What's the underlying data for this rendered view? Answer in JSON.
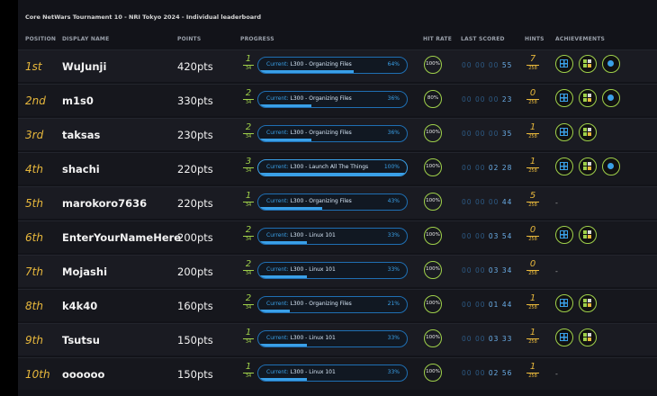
{
  "title": "Core NetWars Tournament 10 - NRI Tokyo 2024 - Individual leaderboard",
  "columns": {
    "position": "POSITION",
    "display_name": "DISPLAY NAME",
    "points": "POINTS",
    "progress": "PROGRESS",
    "hit_rate": "HIT RATE",
    "last_scored": "LAST SCORED",
    "hints": "HINTS",
    "achievements": "ACHIEVEMENTS"
  },
  "colors": {
    "gold": "#e8b83c",
    "green": "#9fd04a",
    "blue": "#3aa0e8"
  },
  "rows": [
    {
      "position": "1st",
      "name": "WuJunji",
      "points": "420pts",
      "level": "1",
      "levels_total": "34",
      "prefix": "Current:",
      "challenge": "L300 - Organizing Files",
      "percent": "64%",
      "fraction": 0.64,
      "hit_rate": "100%",
      "last": [
        "00",
        "00",
        "00",
        "55"
      ],
      "hints": "7",
      "hints_total": "258",
      "achievements": [
        "grid-badge-icon",
        "squares-badge-icon",
        "dot-badge-icon"
      ]
    },
    {
      "position": "2nd",
      "name": "m1s0",
      "points": "330pts",
      "level": "2",
      "levels_total": "34",
      "prefix": "Current:",
      "challenge": "L300 - Organizing Files",
      "percent": "36%",
      "fraction": 0.36,
      "hit_rate": "80%",
      "last": [
        "00",
        "00",
        "00",
        "23"
      ],
      "hints": "0",
      "hints_total": "258",
      "achievements": [
        "grid-badge-icon",
        "squares-badge-icon",
        "dot-badge-icon"
      ]
    },
    {
      "position": "3rd",
      "name": "taksas",
      "points": "230pts",
      "level": "2",
      "levels_total": "34",
      "prefix": "Current:",
      "challenge": "L300 - Organizing Files",
      "percent": "36%",
      "fraction": 0.36,
      "hit_rate": "100%",
      "last": [
        "00",
        "00",
        "00",
        "35"
      ],
      "hints": "1",
      "hints_total": "258",
      "achievements": [
        "grid-badge-icon",
        "squares-badge-icon"
      ]
    },
    {
      "position": "4th",
      "name": "shachi",
      "points": "220pts",
      "level": "3",
      "levels_total": "34",
      "prefix": "Current:",
      "challenge": "L300 - Launch All The Things",
      "percent": "100%",
      "fraction": 1.0,
      "hit_rate": "100%",
      "last": [
        "00",
        "00",
        "02",
        "28"
      ],
      "hints": "1",
      "hints_total": "258",
      "achievements": [
        "grid-badge-icon",
        "squares-badge-icon",
        "dot-badge-icon"
      ]
    },
    {
      "position": "5th",
      "name": "marokoro7636",
      "points": "220pts",
      "level": "1",
      "levels_total": "34",
      "prefix": "Current:",
      "challenge": "L300 - Organizing Files",
      "percent": "43%",
      "fraction": 0.43,
      "hit_rate": "100%",
      "last": [
        "00",
        "00",
        "00",
        "44"
      ],
      "hints": "5",
      "hints_total": "258",
      "achievements": [],
      "achievements_empty": "-"
    },
    {
      "position": "6th",
      "name": "EnterYourNameHere",
      "points": "200pts",
      "level": "2",
      "levels_total": "34",
      "prefix": "Current:",
      "challenge": "L300 - Linux 101",
      "percent": "33%",
      "fraction": 0.33,
      "hit_rate": "100%",
      "last": [
        "00",
        "00",
        "03",
        "54"
      ],
      "hints": "0",
      "hints_total": "258",
      "achievements": [
        "grid-badge-icon",
        "squares-badge-icon"
      ]
    },
    {
      "position": "7th",
      "name": "Mojashi",
      "points": "200pts",
      "level": "2",
      "levels_total": "34",
      "prefix": "Current:",
      "challenge": "L300 - Linux 101",
      "percent": "33%",
      "fraction": 0.33,
      "hit_rate": "100%",
      "last": [
        "00",
        "00",
        "03",
        "34"
      ],
      "hints": "0",
      "hints_total": "258",
      "achievements": [],
      "achievements_empty": "-"
    },
    {
      "position": "8th",
      "name": "k4k40",
      "points": "160pts",
      "level": "2",
      "levels_total": "34",
      "prefix": "Current:",
      "challenge": "L300 - Organizing Files",
      "percent": "21%",
      "fraction": 0.21,
      "hit_rate": "100%",
      "last": [
        "00",
        "00",
        "01",
        "44"
      ],
      "hints": "1",
      "hints_total": "258",
      "achievements": [
        "grid-badge-icon",
        "squares-badge-icon"
      ]
    },
    {
      "position": "9th",
      "name": "Tsutsu",
      "points": "150pts",
      "level": "1",
      "levels_total": "34",
      "prefix": "Current:",
      "challenge": "L300 - Linux 101",
      "percent": "33%",
      "fraction": 0.33,
      "hit_rate": "100%",
      "last": [
        "00",
        "00",
        "03",
        "33"
      ],
      "hints": "1",
      "hints_total": "258",
      "achievements": [
        "grid-badge-icon",
        "squares-badge-icon"
      ]
    },
    {
      "position": "10th",
      "name": "oooooo",
      "points": "150pts",
      "level": "1",
      "levels_total": "34",
      "prefix": "Current:",
      "challenge": "L300 - Linux 101",
      "percent": "33%",
      "fraction": 0.33,
      "hit_rate": "100%",
      "last": [
        "00",
        "00",
        "02",
        "56"
      ],
      "hints": "1",
      "hints_total": "258",
      "achievements": [],
      "achievements_empty": "-"
    }
  ]
}
